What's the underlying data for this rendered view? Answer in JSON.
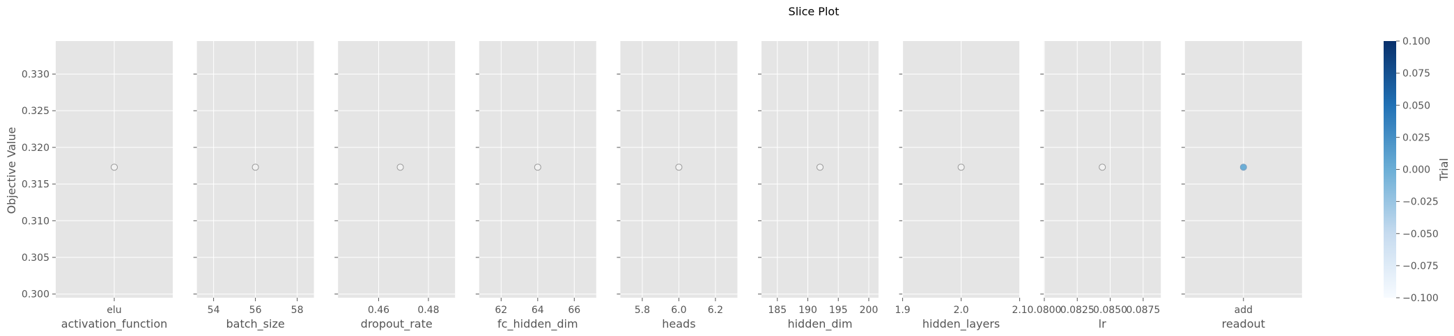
{
  "chart_data": {
    "type": "scatter",
    "title": "Slice Plot",
    "ylabel": "Objective Value",
    "ylim": [
      0.2995,
      0.3345
    ],
    "yticks": [
      0.3,
      0.305,
      0.31,
      0.315,
      0.32,
      0.325,
      0.33
    ],
    "ytick_labels": [
      "0.300",
      "0.305",
      "0.310",
      "0.315",
      "0.320",
      "0.325",
      "0.330"
    ],
    "colorbar": {
      "label": "Trial",
      "range": [
        -0.1,
        0.1
      ],
      "ticks": [
        -0.1,
        -0.075,
        -0.05,
        -0.025,
        0.0,
        0.025,
        0.05,
        0.075,
        0.1
      ],
      "tick_labels": [
        "−0.100",
        "−0.075",
        "−0.050",
        "−0.025",
        "0.000",
        "0.025",
        "0.050",
        "0.075",
        "0.100"
      ],
      "colors": [
        "#f7fbff",
        "#c6dbef",
        "#6baed6",
        "#2171b5",
        "#08306b"
      ]
    },
    "colors": {
      "panel_bg": "#e5e5e5",
      "grid": "#ffffff",
      "text": "#555555",
      "point_open_fill": "#f2f2f2",
      "point_open_edge": "#999999",
      "point_filled": "#6baed6",
      "point_filled_edge": "#7f9fbf"
    },
    "panels": [
      {
        "name": "activation_function",
        "kind": "categorical",
        "xlim": [
          -0.5,
          0.5
        ],
        "ticks": [
          0
        ],
        "tick_labels": [
          "elu"
        ],
        "points": [
          {
            "x": 0,
            "y": 0.3173,
            "filled": false
          }
        ]
      },
      {
        "name": "batch_size",
        "kind": "numeric",
        "xlim": [
          53.2,
          58.8
        ],
        "ticks": [
          54,
          56,
          58
        ],
        "tick_labels": [
          "54",
          "56",
          "58"
        ],
        "points": [
          {
            "x": 56,
            "y": 0.3173,
            "filled": false
          }
        ]
      },
      {
        "name": "dropout_rate",
        "kind": "numeric",
        "xlim": [
          0.4437,
          0.4907
        ],
        "ticks": [
          0.46,
          0.48
        ],
        "tick_labels": [
          "0.46",
          "0.48"
        ],
        "points": [
          {
            "x": 0.4687,
            "y": 0.3173,
            "filled": false
          }
        ]
      },
      {
        "name": "fc_hidden_dim",
        "kind": "numeric",
        "xlim": [
          60.8,
          67.2
        ],
        "ticks": [
          62,
          64,
          66
        ],
        "tick_labels": [
          "62",
          "64",
          "66"
        ],
        "points": [
          {
            "x": 64,
            "y": 0.3173,
            "filled": false
          }
        ]
      },
      {
        "name": "heads",
        "kind": "numeric",
        "xlim": [
          5.68,
          6.32
        ],
        "ticks": [
          5.8,
          6.0,
          6.2
        ],
        "tick_labels": [
          "5.8",
          "6.0",
          "6.2"
        ],
        "points": [
          {
            "x": 6.0,
            "y": 0.3173,
            "filled": false
          }
        ]
      },
      {
        "name": "hidden_dim",
        "kind": "numeric",
        "xlim": [
          182.4,
          201.6
        ],
        "ticks": [
          185,
          190,
          195,
          200
        ],
        "tick_labels": [
          "185",
          "190",
          "195",
          "200"
        ],
        "points": [
          {
            "x": 192,
            "y": 0.3173,
            "filled": false
          }
        ]
      },
      {
        "name": "hidden_layers",
        "kind": "numeric",
        "xlim": [
          1.9,
          2.1
        ],
        "ticks": [
          1.9,
          2.0,
          2.1
        ],
        "tick_labels": [
          "1.9",
          "2.0",
          "2.1"
        ],
        "points": [
          {
            "x": 2.0,
            "y": 0.3173,
            "filled": false
          }
        ]
      },
      {
        "name": "lr",
        "kind": "numeric",
        "xlim": [
          0.07996,
          0.08884
        ],
        "ticks": [
          0.08,
          0.0825,
          0.085,
          0.0875
        ],
        "tick_labels": [
          "0.0800",
          "0.0825",
          "0.0850",
          "0.0875"
        ],
        "points": [
          {
            "x": 0.0844,
            "y": 0.3173,
            "filled": false
          }
        ]
      },
      {
        "name": "readout",
        "kind": "categorical",
        "xlim": [
          -0.5,
          0.5
        ],
        "ticks": [
          0
        ],
        "tick_labels": [
          "add"
        ],
        "points": [
          {
            "x": 0,
            "y": 0.3173,
            "filled": true
          }
        ]
      }
    ]
  }
}
